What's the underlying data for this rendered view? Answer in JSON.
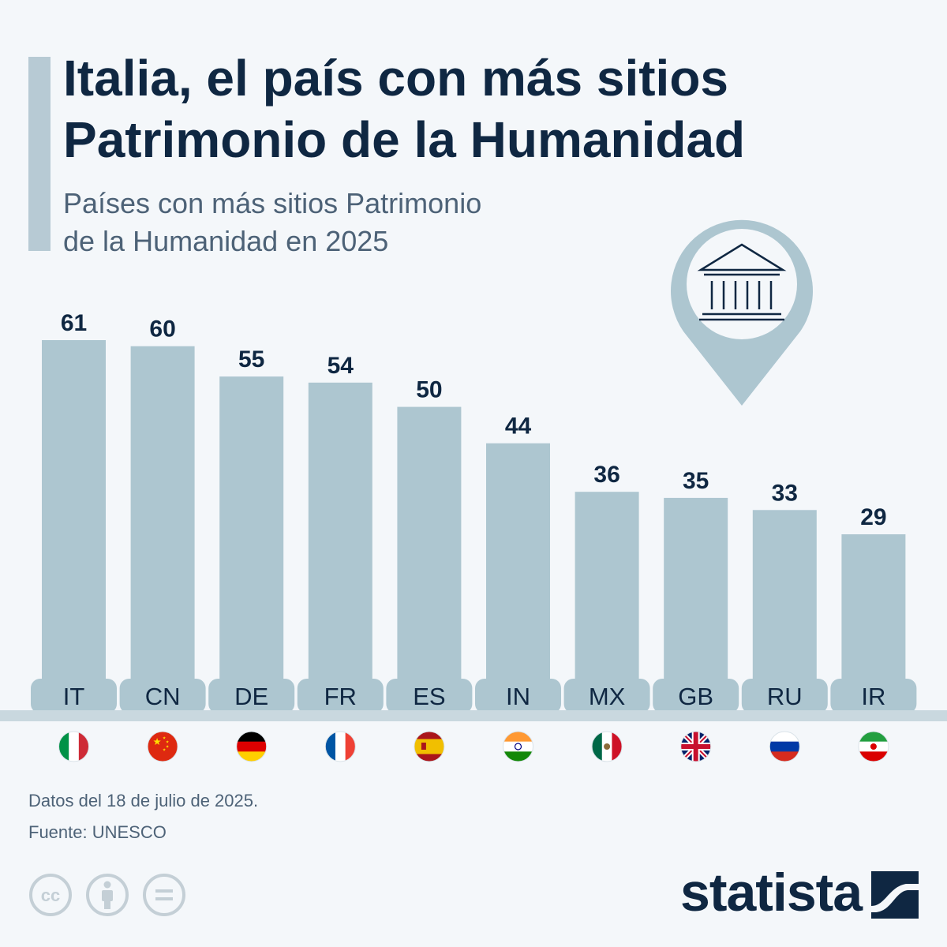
{
  "header": {
    "title_line1": "Italia, el país con más sitios",
    "title_line2": "Patrimonio de la Humanidad",
    "subtitle_line1": "Países con más sitios Patrimonio",
    "subtitle_line2": "de la Humanidad en 2025"
  },
  "chart_data": {
    "type": "bar",
    "title": "Italia, el país con más sitios Patrimonio de la Humanidad",
    "subtitle": "Países con más sitios Patrimonio de la Humanidad en 2025",
    "categories": [
      "IT",
      "CN",
      "DE",
      "FR",
      "ES",
      "IN",
      "MX",
      "GB",
      "RU",
      "IR"
    ],
    "values": [
      61,
      60,
      55,
      54,
      50,
      44,
      36,
      35,
      33,
      29
    ],
    "xlabel": "",
    "ylabel": "",
    "ylim": [
      0,
      61
    ],
    "grid": false,
    "legend": "none",
    "data_labels": true
  },
  "footer": {
    "date_note": "Datos del 18 de julio de 2025.",
    "source": "Fuente: UNESCO",
    "brand": "statista"
  },
  "icons": {
    "pin": "museum-pin-icon",
    "license": [
      "cc-icon",
      "attribution-icon",
      "no-derivatives-icon"
    ],
    "brand": "statista-logo-icon"
  },
  "colors": {
    "background": "#f4f7fa",
    "bar": "#adc6d0",
    "text_dark": "#0f2742",
    "text_muted": "#4d6277",
    "accent": "#b7cad4",
    "pin": "#adc6d0"
  }
}
